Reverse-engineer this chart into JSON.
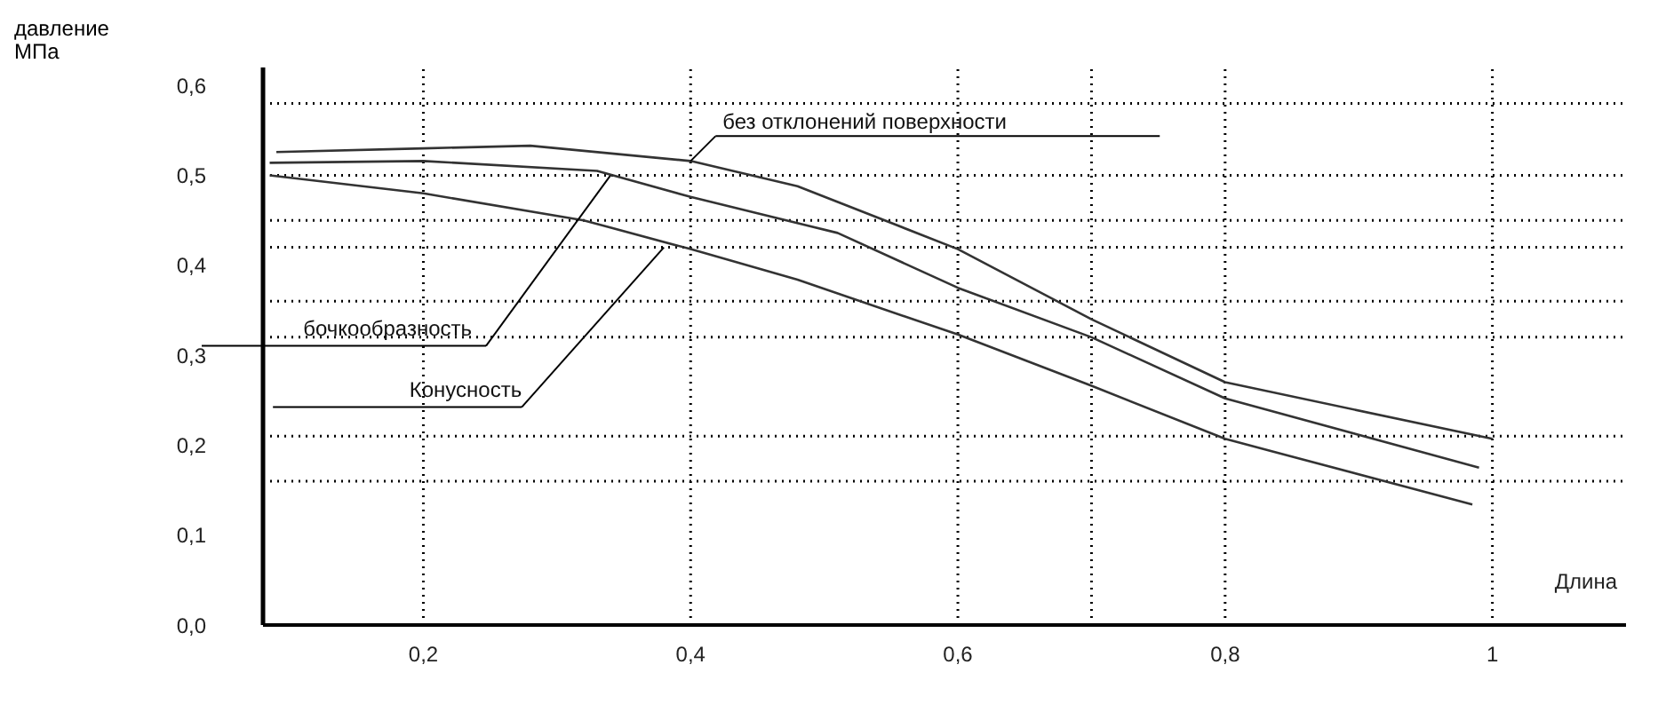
{
  "chart_data": {
    "type": "line",
    "xlabel": "Длина",
    "ylabel": "давление МПа",
    "xlim": [
      0.08,
      1.1
    ],
    "ylim": [
      0,
      0.62
    ],
    "xticks": [
      {
        "value": 0.2,
        "label": "0,2"
      },
      {
        "value": 0.4,
        "label": "0,4"
      },
      {
        "value": 0.6,
        "label": "0,6"
      },
      {
        "value": 0.8,
        "label": "0,8"
      },
      1
    ],
    "yticks": [
      {
        "value": 0,
        "label": "0,0"
      },
      {
        "value": 0.1,
        "label": "0,1"
      },
      {
        "value": 0.2,
        "label": "0,2"
      },
      {
        "value": 0.3,
        "label": "0,3"
      },
      {
        "value": 0.4,
        "label": "0,4"
      },
      {
        "value": 0.5,
        "label": "0,5"
      },
      {
        "value": 0.6,
        "label": "0,6"
      }
    ],
    "series": [
      {
        "color": "#333333",
        "x": [
          0.09,
          0.2,
          0.28,
          0.4,
          0.48,
          0.6,
          0.7,
          0.8,
          1.0
        ],
        "values": [
          0.526,
          0.53,
          0.533,
          0.516,
          0.488,
          0.418,
          0.34,
          0.27,
          0.207
        ]
      },
      {
        "color": "#333333",
        "x": [
          0.085,
          0.2,
          0.33,
          0.4,
          0.51,
          0.6,
          0.7,
          0.8,
          0.99
        ],
        "values": [
          0.514,
          0.516,
          0.505,
          0.476,
          0.436,
          0.375,
          0.32,
          0.252,
          0.175
        ]
      },
      {
        "color": "#333333",
        "x": [
          0.085,
          0.2,
          0.32,
          0.4,
          0.48,
          0.6,
          0.7,
          0.8,
          0.985
        ],
        "values": [
          0.5,
          0.48,
          0.45,
          0.418,
          0.384,
          0.323,
          0.266,
          0.207,
          0.134
        ]
      }
    ],
    "annotations": [
      {
        "text": "без отклонений поверхности",
        "x": 0.4,
        "y": 0.516
      },
      {
        "text": "бочкообразность",
        "x": 0.34,
        "y": 0.5
      },
      {
        "text": "Конусность",
        "x": 0.38,
        "y": 0.42
      }
    ],
    "ref_lines": [
      {
        "axis": "y",
        "value": 0.58,
        "color": "#000000",
        "line_style": "dotted"
      },
      {
        "axis": "y",
        "value": 0.5,
        "color": "#000000",
        "line_style": "dotted"
      },
      {
        "axis": "y",
        "value": 0.45,
        "color": "#000000",
        "line_style": "dotted"
      },
      {
        "axis": "y",
        "value": 0.42,
        "color": "#000000",
        "line_style": "dotted"
      },
      {
        "axis": "y",
        "value": 0.36,
        "color": "#000000",
        "line_style": "dotted"
      },
      {
        "axis": "y",
        "value": 0.32,
        "color": "#000000",
        "line_style": "dotted"
      },
      {
        "axis": "y",
        "value": 0.21,
        "color": "#000000",
        "line_style": "dotted"
      },
      {
        "axis": "y",
        "value": 0.16,
        "color": "#000000",
        "line_style": "dotted"
      },
      {
        "axis": "x",
        "value": 0.2,
        "color": "#000000",
        "line_style": "dotted"
      },
      {
        "axis": "x",
        "value": 0.4,
        "color": "#000000",
        "line_style": "dotted"
      },
      {
        "axis": "x",
        "value": 0.6,
        "color": "#000000",
        "line_style": "dotted"
      },
      {
        "axis": "x",
        "value": 0.7,
        "color": "#000000",
        "line_style": "dotted"
      },
      {
        "axis": "x",
        "value": 0.8,
        "color": "#000000",
        "line_style": "dotted"
      },
      {
        "axis": "x",
        "value": 1.0,
        "color": "#000000",
        "line_style": "dotted"
      }
    ],
    "grid": false,
    "legend": false,
    "marker": "none",
    "line_style": "solid"
  }
}
